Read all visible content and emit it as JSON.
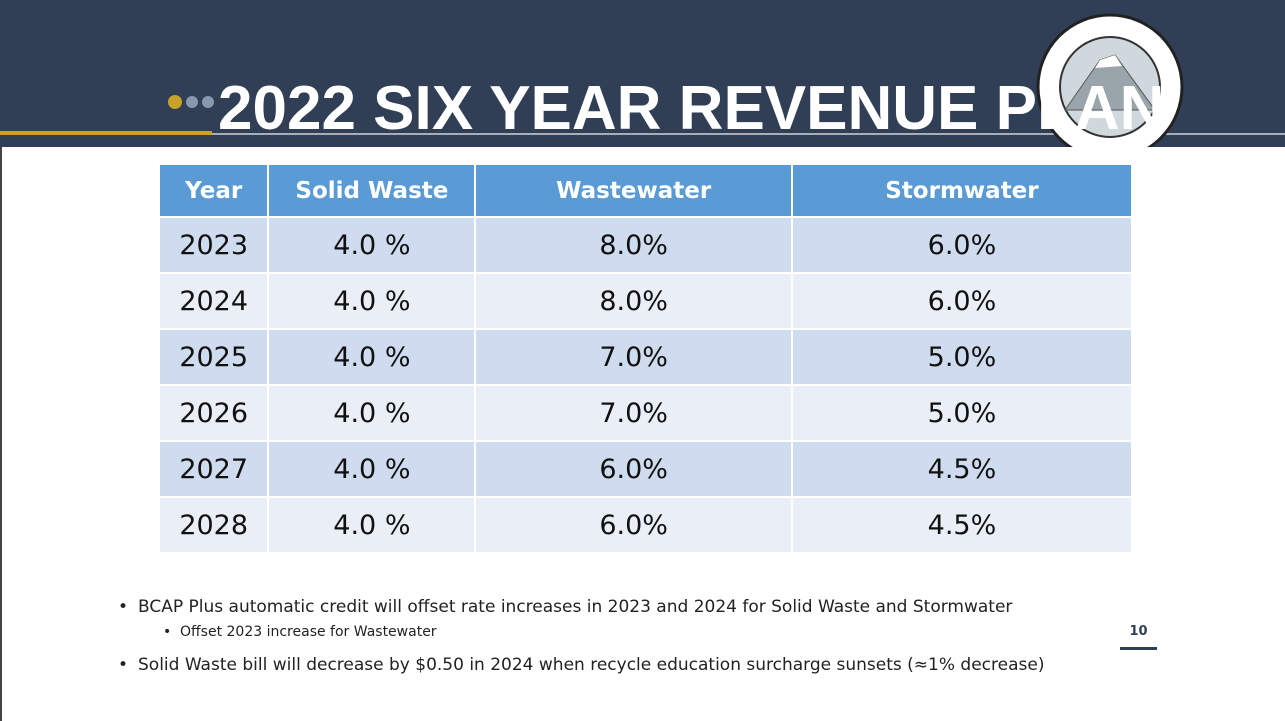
{
  "header": {
    "title": "2022 SIX YEAR REVENUE PLAN"
  },
  "table": {
    "columns": [
      "Year",
      "Solid Waste",
      "Wastewater",
      "Stormwater"
    ],
    "rows": [
      [
        "2023",
        "4.0 %",
        "8.0%",
        "6.0%"
      ],
      [
        "2024",
        "4.0 %",
        "8.0%",
        "6.0%"
      ],
      [
        "2025",
        "4.0 %",
        "7.0%",
        "5.0%"
      ],
      [
        "2026",
        "4.0 %",
        "7.0%",
        "5.0%"
      ],
      [
        "2027",
        "4.0 %",
        "6.0%",
        "4.5%"
      ],
      [
        "2028",
        "4.0 %",
        "6.0%",
        "4.5%"
      ]
    ]
  },
  "bullets": [
    {
      "text": "BCAP Plus automatic credit will offset rate increases in 2023 and 2024 for Solid Waste and Stormwater",
      "sub": [
        "Offset 2023 increase for Wastewater"
      ]
    },
    {
      "text": "Solid Waste bill will decrease by $0.50 in 2024 when recycle education surcharge sunsets (≈1% decrease)",
      "sub": []
    }
  ],
  "page_number": "10"
}
